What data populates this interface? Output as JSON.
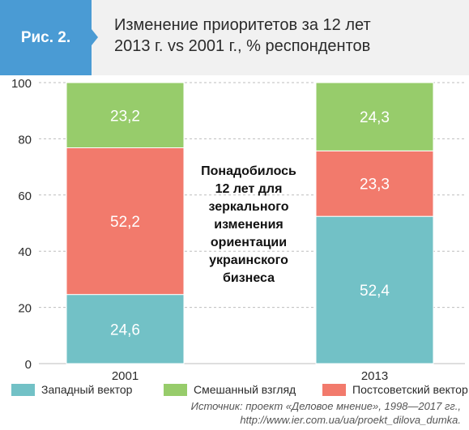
{
  "figure": {
    "label": "Рис. 2.",
    "title_line1": "Изменение приоритетов за 12 лет",
    "title_line2": "2013 г. vs 2001 г., % респондентов"
  },
  "colors": {
    "header_bg": "#f1f1f1",
    "badge": "#4a9bd4",
    "western": "#72c1c6",
    "mixed": "#97cc6b",
    "post_soviet": "#f27a6c",
    "grid": "#bdbdbd",
    "axis_text": "#2b2b2b"
  },
  "chart_data": {
    "type": "bar",
    "stacked": true,
    "categories": [
      "2001",
      "2013"
    ],
    "series": [
      {
        "name": "Западный вектор",
        "values": [
          24.6,
          52.4
        ],
        "labels": [
          "24,6",
          "52,4"
        ]
      },
      {
        "name": "Постсоветский вектор",
        "values": [
          52.2,
          23.3
        ],
        "labels": [
          "52,2",
          "23,3"
        ]
      },
      {
        "name": "Смешанный взгляд",
        "values": [
          23.2,
          24.3
        ],
        "labels": [
          "23,2",
          "24,3"
        ]
      }
    ],
    "ylim": [
      0,
      100
    ],
    "yticks": [
      0,
      20,
      40,
      60,
      80,
      100
    ],
    "grid": true,
    "annotation": [
      "Понадобилось",
      "12 лет для",
      "зеркального",
      "изменения",
      "ориентации",
      "украинского",
      "бизнеса"
    ]
  },
  "legend": [
    {
      "label": "Западный вектор",
      "color_key": "western"
    },
    {
      "label": "Смешанный взгляд",
      "color_key": "mixed"
    },
    {
      "label": "Постсоветский вектор",
      "color_key": "post_soviet"
    }
  ],
  "source": {
    "line1": "Источник: проект «Деловое мнение», 1998—2017 гг.,",
    "line2": "http://www.ier.com.ua/ua/proekt_dilova_dumka."
  }
}
